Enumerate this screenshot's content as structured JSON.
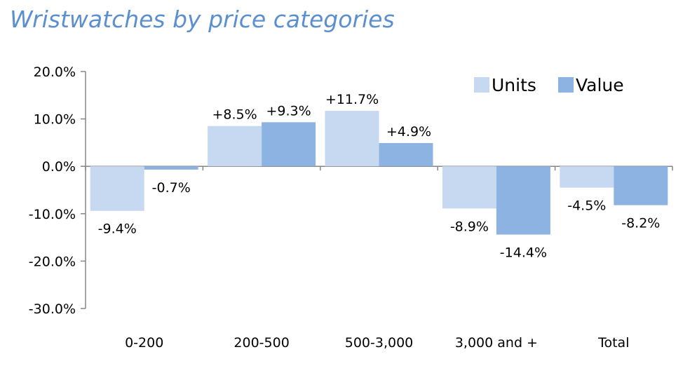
{
  "chart_data": {
    "type": "bar",
    "title": "Wristwatches by price categories",
    "categories": [
      "0-200",
      "200-500",
      "500-3,000",
      "3,000 and +",
      "Total"
    ],
    "series": [
      {
        "name": "Units",
        "values": [
          -9.4,
          8.5,
          11.7,
          -8.9,
          -4.5
        ],
        "labels": [
          "-9.4%",
          "+8.5%",
          "+11.7%",
          "-8.9%",
          "-4.5%"
        ],
        "color": "#c6d9f1"
      },
      {
        "name": "Value",
        "values": [
          -0.7,
          9.3,
          4.9,
          -14.4,
          -8.2
        ],
        "labels": [
          "-0.7%",
          "+9.3%",
          "+4.9%",
          "-14.4%",
          "-8.2%"
        ],
        "color": "#8db3e2"
      }
    ],
    "ylim": [
      -30,
      20
    ],
    "yticks": [
      20,
      10,
      0,
      -10,
      -20,
      -30
    ],
    "ytick_labels": [
      "20.0%",
      "10.0%",
      "0.0%",
      "-10.0%",
      "-20.0%",
      "-30.0%"
    ],
    "xlabel": "",
    "ylabel": "",
    "grid": false,
    "legend": "top-right"
  }
}
